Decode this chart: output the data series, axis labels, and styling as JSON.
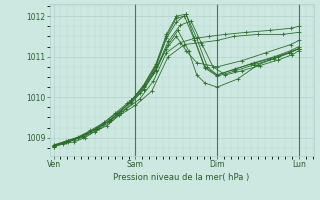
{
  "background_color": "#cce8e0",
  "grid_color": "#b0cccc",
  "line_color": "#2d6e2d",
  "marker_color": "#2d6e2d",
  "xlabel_text": "Pression niveau de la mer( hPa )",
  "xtick_labels": [
    "Ven",
    "Sam",
    "Dim",
    "Lun"
  ],
  "xtick_positions": [
    0,
    1,
    2,
    3
  ],
  "ylim": [
    1008.55,
    1012.3
  ],
  "xlim": [
    -0.05,
    3.18
  ],
  "yticks": [
    1009,
    1010,
    1011,
    1012
  ],
  "series": [
    {
      "x": [
        0.0,
        0.12,
        0.25,
        0.38,
        0.5,
        0.65,
        0.8,
        1.0,
        1.2,
        1.4,
        1.6,
        1.8,
        2.0,
        2.2,
        2.5,
        2.8,
        3.0
      ],
      "y": [
        1008.78,
        1008.85,
        1008.9,
        1009.0,
        1009.15,
        1009.3,
        1009.55,
        1009.8,
        1010.15,
        1011.0,
        1011.3,
        1011.35,
        1011.4,
        1011.5,
        1011.55,
        1011.55,
        1011.6
      ]
    },
    {
      "x": [
        0.0,
        0.12,
        0.25,
        0.4,
        0.55,
        0.7,
        0.88,
        1.05,
        1.22,
        1.38,
        1.55,
        1.72,
        1.9,
        2.1,
        2.35,
        2.65,
        2.9,
        3.0
      ],
      "y": [
        1008.8,
        1008.87,
        1008.95,
        1009.1,
        1009.25,
        1009.45,
        1009.7,
        1009.95,
        1010.4,
        1011.1,
        1011.35,
        1011.45,
        1011.5,
        1011.55,
        1011.6,
        1011.65,
        1011.7,
        1011.75
      ]
    },
    {
      "x": [
        0.0,
        0.15,
        0.3,
        0.45,
        0.6,
        0.75,
        0.9,
        1.05,
        1.22,
        1.38,
        1.5,
        1.62,
        1.75,
        2.0,
        2.3,
        2.6,
        2.9,
        3.0
      ],
      "y": [
        1008.82,
        1008.9,
        1009.0,
        1009.15,
        1009.35,
        1009.6,
        1009.85,
        1010.1,
        1010.6,
        1011.2,
        1011.5,
        1011.15,
        1010.85,
        1010.75,
        1010.9,
        1011.1,
        1011.3,
        1011.4
      ]
    },
    {
      "x": [
        0.0,
        0.15,
        0.3,
        0.45,
        0.62,
        0.78,
        0.95,
        1.1,
        1.25,
        1.4,
        1.52,
        1.65,
        1.75,
        1.85,
        2.0,
        2.25,
        2.5,
        2.75,
        3.0
      ],
      "y": [
        1008.82,
        1008.92,
        1009.02,
        1009.18,
        1009.38,
        1009.62,
        1009.88,
        1010.18,
        1010.65,
        1011.3,
        1011.65,
        1011.15,
        1010.55,
        1010.35,
        1010.25,
        1010.45,
        1010.8,
        1011.0,
        1011.2
      ]
    },
    {
      "x": [
        0.0,
        0.18,
        0.35,
        0.52,
        0.68,
        0.82,
        0.95,
        1.1,
        1.25,
        1.38,
        1.5,
        1.62,
        1.75,
        1.88,
        2.0,
        2.22,
        2.45,
        2.7,
        2.9,
        3.0
      ],
      "y": [
        1008.8,
        1008.92,
        1009.05,
        1009.22,
        1009.42,
        1009.65,
        1009.92,
        1010.25,
        1010.75,
        1011.45,
        1011.85,
        1012.05,
        1011.45,
        1010.75,
        1010.55,
        1010.7,
        1010.85,
        1011.0,
        1011.15,
        1011.25
      ]
    },
    {
      "x": [
        0.0,
        0.18,
        0.36,
        0.52,
        0.68,
        0.82,
        0.95,
        1.1,
        1.25,
        1.38,
        1.5,
        1.6,
        1.72,
        1.85,
        2.0,
        2.22,
        2.45,
        2.7,
        2.9,
        3.0
      ],
      "y": [
        1008.8,
        1008.92,
        1009.05,
        1009.22,
        1009.42,
        1009.65,
        1009.92,
        1010.28,
        1010.78,
        1011.5,
        1011.95,
        1012.0,
        1011.42,
        1010.72,
        1010.52,
        1010.65,
        1010.8,
        1010.95,
        1011.1,
        1011.2
      ]
    },
    {
      "x": [
        0.0,
        0.18,
        0.36,
        0.52,
        0.68,
        0.82,
        0.95,
        1.1,
        1.25,
        1.38,
        1.5,
        1.62,
        1.72,
        1.85,
        2.0,
        2.2,
        2.42,
        2.65,
        2.88,
        3.0
      ],
      "y": [
        1008.8,
        1008.92,
        1009.05,
        1009.22,
        1009.42,
        1009.65,
        1009.92,
        1010.3,
        1010.82,
        1011.55,
        1012.0,
        1012.05,
        1011.45,
        1010.75,
        1010.55,
        1010.68,
        1010.82,
        1010.95,
        1011.1,
        1011.2
      ]
    },
    {
      "x": [
        0.0,
        0.18,
        0.36,
        0.52,
        0.68,
        0.82,
        0.95,
        1.1,
        1.25,
        1.4,
        1.55,
        1.68,
        1.82,
        1.95,
        2.1,
        2.3,
        2.52,
        2.75,
        2.92,
        3.0
      ],
      "y": [
        1008.78,
        1008.9,
        1009.02,
        1009.18,
        1009.38,
        1009.6,
        1009.85,
        1010.2,
        1010.68,
        1011.38,
        1011.78,
        1011.88,
        1011.28,
        1010.75,
        1010.55,
        1010.65,
        1010.78,
        1010.92,
        1011.05,
        1011.15
      ]
    }
  ]
}
